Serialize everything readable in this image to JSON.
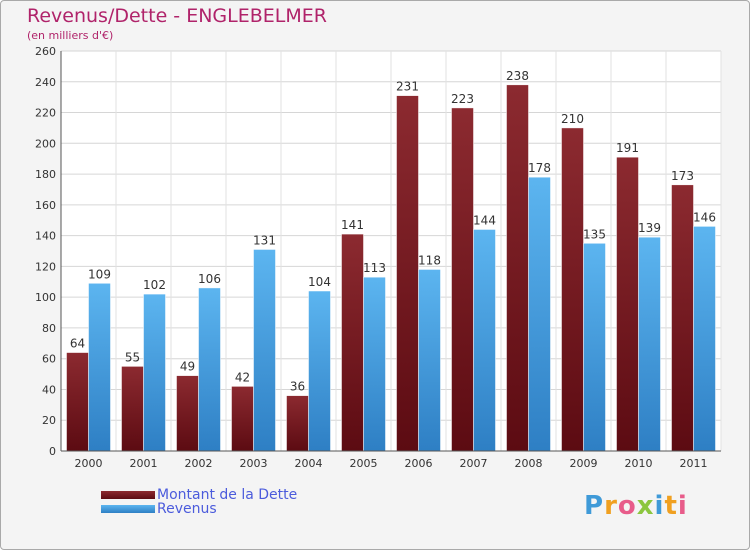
{
  "chart_data": {
    "type": "bar",
    "title": "Revenus/Dette - ENGLEBELMER",
    "subtitle": "(en milliers d'€)",
    "xlabel": "",
    "ylabel": "",
    "ylim": [
      0,
      260
    ],
    "ytick_step": 20,
    "grid": true,
    "legend_position": "bottom-left",
    "categories": [
      "2000",
      "2001",
      "2002",
      "2003",
      "2004",
      "2005",
      "2006",
      "2007",
      "2008",
      "2009",
      "2010",
      "2011"
    ],
    "series": [
      {
        "name": "Montant de la Dette",
        "color": "#7a1a1f",
        "values": [
          64,
          55,
          49,
          42,
          36,
          141,
          231,
          223,
          238,
          210,
          191,
          173
        ]
      },
      {
        "name": "Revenus",
        "color": "#4fa9e8",
        "values": [
          109,
          102,
          106,
          131,
          104,
          113,
          118,
          144,
          178,
          135,
          139,
          146
        ]
      }
    ]
  },
  "logo": {
    "text": "Proxiti",
    "letter_colors": [
      "#3f9ad8",
      "#f0a020",
      "#e85c8a",
      "#8cc63f",
      "#3f9ad8",
      "#f0a020",
      "#e85c8a"
    ]
  }
}
